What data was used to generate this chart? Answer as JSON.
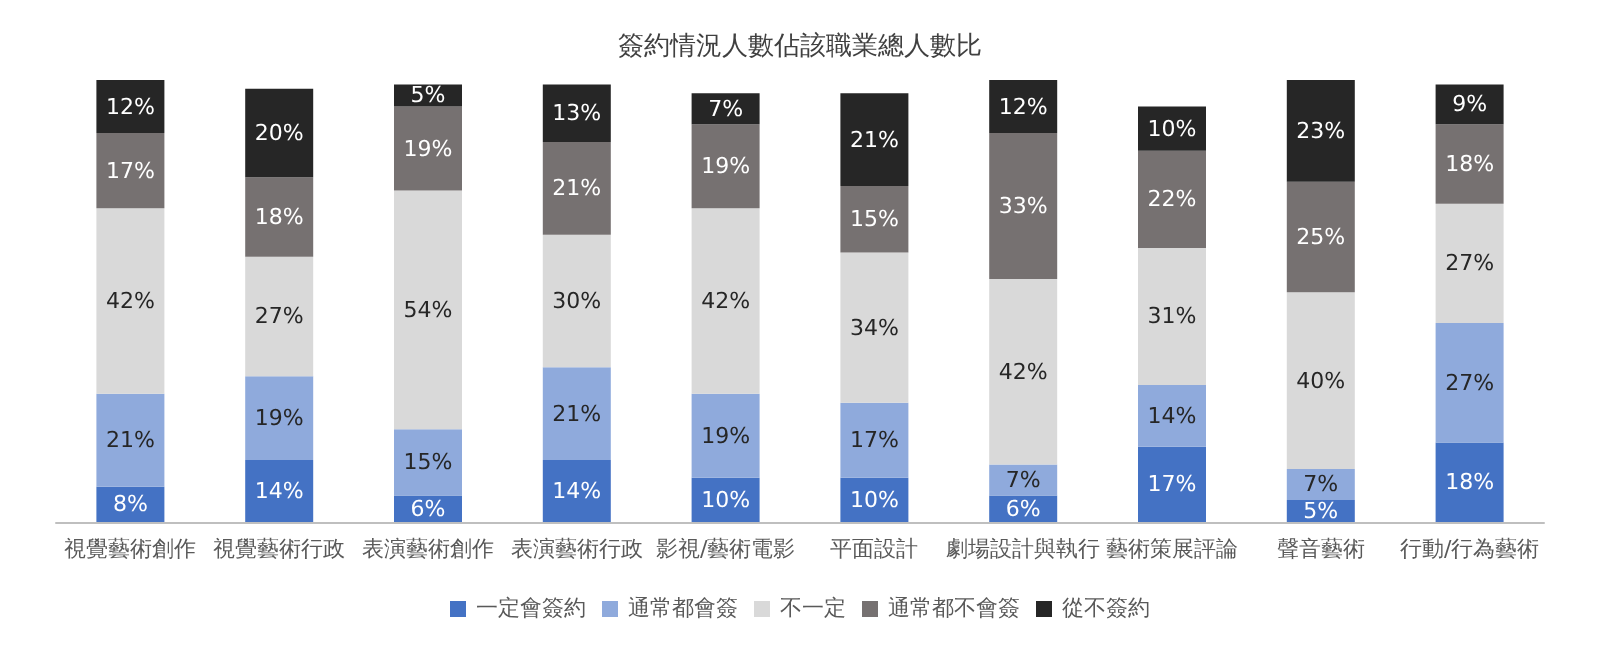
{
  "chart_data": {
    "type": "bar",
    "title": "簽約情況人數佔該職業總人數比",
    "stacked": true,
    "legend": "bottom",
    "grid": false,
    "categories": [
      "視覺藝術創作",
      "視覺藝術行政",
      "表演藝術創作",
      "表演藝術行政",
      "影視/藝術電影",
      "平面設計",
      "劇場設計與執行",
      "藝術策展評論",
      "聲音藝術",
      "行動/行為藝術"
    ],
    "series": [
      {
        "name": "一定會簽約",
        "color": "#4472c4",
        "values": [
          8,
          14,
          6,
          14,
          10,
          10,
          6,
          17,
          5,
          18
        ],
        "value_labels": [
          "8%",
          "14%",
          "6%",
          "14%",
          "10%",
          "10%",
          "6%",
          "17%",
          "5%",
          "18%"
        ]
      },
      {
        "name": "通常都會簽",
        "color": "#8faadc",
        "values": [
          21,
          19,
          15,
          21,
          19,
          17,
          7,
          14,
          7,
          27
        ],
        "value_labels": [
          "21%",
          "19%",
          "15%",
          "21%",
          "19%",
          "17%",
          "7%",
          "14%",
          "7%",
          "27%"
        ]
      },
      {
        "name": "不一定",
        "color": "#d9d9d9",
        "values": [
          42,
          27,
          54,
          30,
          42,
          34,
          42,
          31,
          40,
          27
        ],
        "value_labels": [
          "42%",
          "27%",
          "54%",
          "30%",
          "42%",
          "34%",
          "42%",
          "31%",
          "40%",
          "27%"
        ]
      },
      {
        "name": "通常都不會簽",
        "color": "#767171",
        "values": [
          17,
          18,
          19,
          21,
          19,
          15,
          33,
          22,
          25,
          18
        ],
        "value_labels": [
          "17%",
          "18%",
          "19%",
          "21%",
          "19%",
          "15%",
          "33%",
          "22%",
          "25%",
          "18%"
        ]
      },
      {
        "name": "從不簽約",
        "color": "#262626",
        "values": [
          12,
          20,
          5,
          13,
          7,
          21,
          12,
          10,
          23,
          9
        ],
        "value_labels": [
          "12%",
          "20%",
          "5%",
          "13%",
          "7%",
          "21%",
          "12%",
          "10%",
          "23%",
          "9%"
        ]
      }
    ]
  }
}
